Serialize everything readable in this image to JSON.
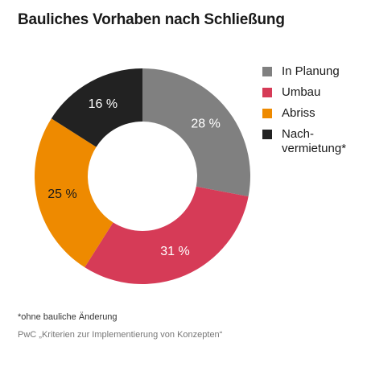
{
  "page": {
    "title": "Bauliches Vorhaben nach Schließung",
    "footnote": "*ohne bauliche Änderung",
    "source": "PwC „Kriterien zur Implementierung von Konzepten“"
  },
  "chart_data": {
    "type": "pie",
    "donut": true,
    "categories": [
      "In Planung",
      "Umbau",
      "Abriss",
      "Nach-\nvermietung*"
    ],
    "values": [
      28,
      31,
      25,
      16
    ],
    "value_labels": [
      "28 %",
      "31 %",
      "25 %",
      "16 %"
    ],
    "colors": [
      "#808080",
      "#d63b57",
      "#ee8a00",
      "#222222"
    ],
    "label_colors": [
      "#ffffff",
      "#ffffff",
      "#1a1a1a",
      "#ffffff"
    ],
    "start": "12 o'clock",
    "direction": "clockwise",
    "legend_position": "right"
  }
}
